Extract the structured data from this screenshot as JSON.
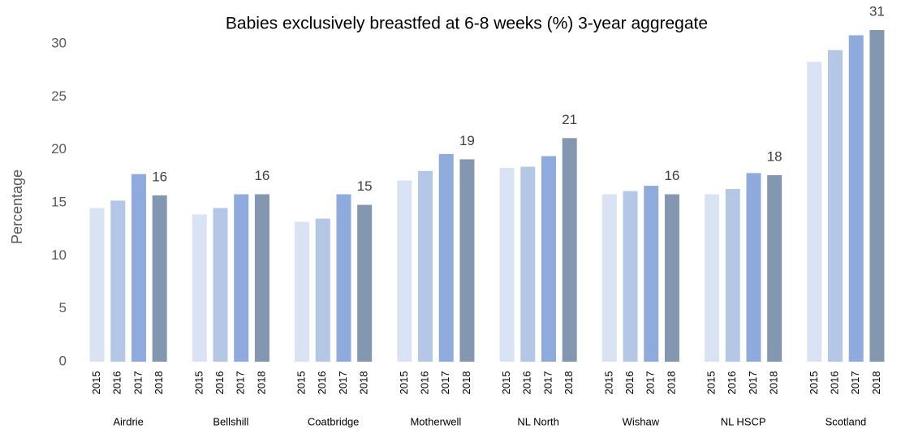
{
  "chart_data": {
    "type": "bar",
    "title": "Babies exclusively breastfed at 6-8 weeks (%) 3-year aggregate",
    "y_label": "Percentage",
    "categories": [
      "Airdrie",
      "Bellshill",
      "Coatbridge",
      "Motherwell",
      "NL North",
      "Wishaw",
      "NL HSCP",
      "Scotland"
    ],
    "series": [
      {
        "name": "2015",
        "color": "#dae3f3",
        "values": [
          14.5,
          13.9,
          13.2,
          17.1,
          18.3,
          15.8,
          15.8,
          28.3
        ]
      },
      {
        "name": "2016",
        "color": "#b4c7e7",
        "values": [
          15.2,
          14.5,
          13.5,
          18.0,
          18.4,
          16.1,
          16.3,
          29.4
        ]
      },
      {
        "name": "2017",
        "color": "#8faadc",
        "values": [
          17.7,
          15.8,
          15.8,
          19.6,
          19.4,
          16.6,
          17.8,
          30.8
        ]
      },
      {
        "name": "2018",
        "color": "#8497b0",
        "values": [
          15.7,
          15.8,
          14.8,
          19.1,
          21.1,
          15.8,
          17.6,
          31.3
        ],
        "value_labels": [
          "16",
          "16",
          "15",
          "19",
          "21",
          "16",
          "18",
          "31"
        ]
      }
    ],
    "ylim": [
      0,
      30
    ],
    "yticks": [
      0,
      5,
      10,
      15,
      20,
      25,
      30
    ],
    "grid": false
  }
}
